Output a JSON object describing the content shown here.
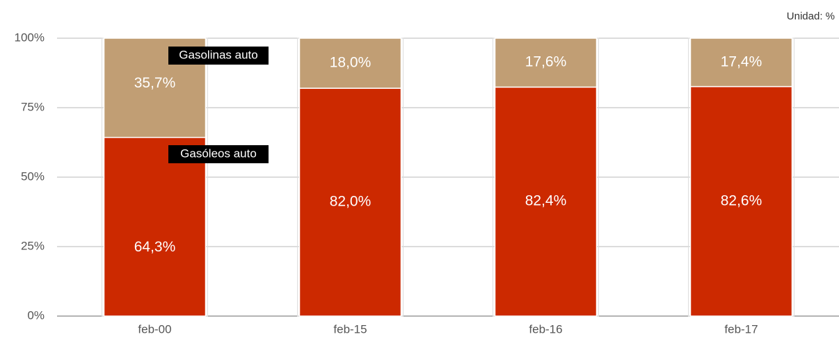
{
  "chart_data": {
    "type": "stacked_bar",
    "unit_label": "Unidad: %",
    "categories": [
      "feb-00",
      "feb-15",
      "feb-16",
      "feb-17"
    ],
    "series": [
      {
        "name": "Gasóleos auto",
        "color": "#cc2900",
        "values": [
          64.3,
          82.0,
          82.4,
          82.6
        ],
        "value_labels": [
          "64,3%",
          "82,0%",
          "82,4%",
          "82,6%"
        ]
      },
      {
        "name": "Gasolinas auto",
        "color": "#c19e74",
        "values": [
          35.7,
          18.0,
          17.6,
          17.4
        ],
        "value_labels": [
          "35,7%",
          "18,0%",
          "17,6%",
          "17,4%"
        ]
      }
    ],
    "ylim": [
      0,
      100
    ],
    "yticks": [
      {
        "value": 0,
        "label": "0%"
      },
      {
        "value": 25,
        "label": "25%"
      },
      {
        "value": 50,
        "label": "50%"
      },
      {
        "value": 75,
        "label": "75%"
      },
      {
        "value": 100,
        "label": "100%"
      }
    ],
    "grid": true
  }
}
